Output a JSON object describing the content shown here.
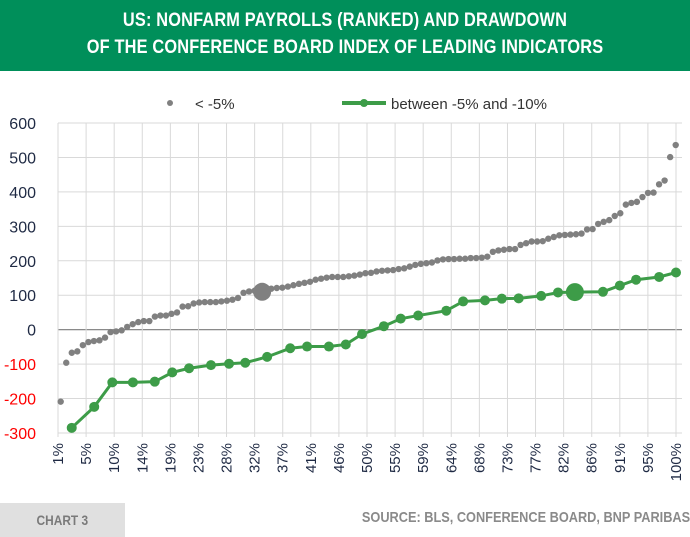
{
  "header": {
    "title_line1": "US: NONFARM PAYROLLS (RANKED) AND DRAWDOWN",
    "title_line2": "OF THE CONFERENCE BOARD INDEX OF LEADING INDICATORS",
    "background": "#008f5a"
  },
  "footer": {
    "chart_label": "CHART 3",
    "source": "SOURCE: BLS, CONFERENCE BOARD, BNP PARIBAS"
  },
  "chart_data": {
    "type": "scatter",
    "title": "US: NONFARM PAYROLLS (RANKED) AND DRAWDOWN OF THE CONFERENCE BOARD INDEX OF LEADING INDICATORS",
    "xlabel": "",
    "ylabel": "",
    "ylim": [
      -300,
      600
    ],
    "yticks": [
      600,
      500,
      400,
      300,
      200,
      100,
      0,
      -100,
      -200,
      -300
    ],
    "negative_tick_color": "#ff0000",
    "positive_tick_color": "#1f2a44",
    "xlim": [
      1,
      100
    ],
    "xtick_labels": [
      "1%",
      "5%",
      "10%",
      "14%",
      "19%",
      "23%",
      "28%",
      "32%",
      "37%",
      "41%",
      "46%",
      "50%",
      "55%",
      "59%",
      "64%",
      "68%",
      "73%",
      "77%",
      "82%",
      "86%",
      "91%",
      "95%",
      "100%"
    ],
    "grid": true,
    "legend_position": "top",
    "series": [
      {
        "name": "< -5%",
        "style": "markers",
        "color": "#808080",
        "values": [
          -209,
          -96,
          -67,
          -63,
          -45,
          -36,
          -33,
          -31,
          -23,
          -7,
          -5,
          -2,
          8,
          16,
          22,
          25,
          25,
          38,
          41,
          41,
          46,
          50,
          67,
          68,
          76,
          79,
          80,
          80,
          80,
          82,
          84,
          87,
          92,
          107,
          111,
          113,
          116,
          118,
          119,
          121,
          122,
          125,
          129,
          133,
          136,
          139,
          145,
          148,
          151,
          153,
          153,
          153,
          155,
          157,
          160,
          164,
          165,
          169,
          171,
          172,
          173,
          176,
          178,
          183,
          188,
          191,
          193,
          195,
          201,
          204,
          205,
          205,
          206,
          206,
          208,
          208,
          209,
          212,
          226,
          230,
          232,
          234,
          234,
          246,
          251,
          256,
          256,
          257,
          264,
          269,
          274,
          275,
          276,
          277,
          279,
          291,
          292,
          307,
          313,
          318,
          330,
          338,
          363,
          368,
          371,
          385,
          397,
          398,
          422,
          433,
          501,
          536
        ],
        "highlight": {
          "x": 33.7,
          "y": 110
        }
      },
      {
        "name": "between -5% and -10%",
        "style": "line-markers",
        "color": "#3d9c48",
        "x": [
          3.2,
          6.8,
          9.7,
          13.0,
          16.5,
          19.3,
          22.0,
          25.5,
          28.4,
          31.0,
          34.5,
          38.2,
          40.9,
          44.4,
          47.1,
          49.7,
          53.2,
          55.9,
          58.7,
          63.2,
          65.9,
          69.4,
          72.1,
          74.8,
          78.4,
          81.1,
          83.8,
          88.3,
          91.0,
          93.6,
          97.3,
          100
        ],
        "y": [
          -285,
          -224,
          -153,
          -153,
          -151,
          -124,
          -112,
          -103,
          -99,
          -96,
          -79,
          -54,
          -49,
          -49,
          -43,
          -13,
          10,
          32,
          41,
          55,
          82,
          85,
          90,
          91,
          98,
          108,
          109,
          110,
          128,
          145,
          153,
          166
        ],
        "highlight": {
          "x": 83.8,
          "y": 109
        }
      }
    ]
  }
}
